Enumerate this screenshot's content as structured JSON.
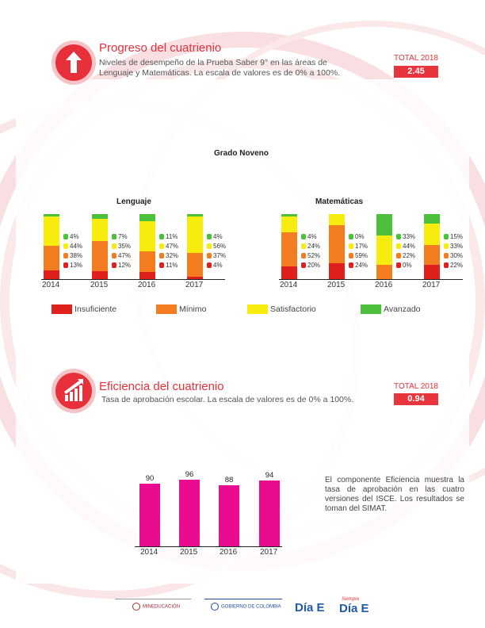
{
  "progress": {
    "title": "Progreso del cuatrienio",
    "description": "Niveles de desempeño de la Prueba Saber 9° en las áreas de Lenguaje y Matemáticas. La escala de valores es de 0% a 100%.",
    "total_label": "TOTAL 2018",
    "total_value": "2.45"
  },
  "grade_title": "Grado Noveno",
  "colors": {
    "insuficiente": "#e0201d",
    "minimo": "#f47c20",
    "satisfactorio": "#f7ec0e",
    "avanzado": "#4dc03b",
    "eficiencia": "#ea0c8e"
  },
  "chart_data": [
    {
      "type": "bar",
      "stacked": true,
      "title": "Lenguaje",
      "categories": [
        "2014",
        "2015",
        "2016",
        "2017"
      ],
      "series": [
        {
          "name": "Insuficiente",
          "values": [
            13,
            12,
            11,
            4
          ]
        },
        {
          "name": "Mínimo",
          "values": [
            38,
            47,
            32,
            37
          ]
        },
        {
          "name": "Satisfactorio",
          "values": [
            44,
            35,
            47,
            56
          ]
        },
        {
          "name": "Avanzado",
          "values": [
            4,
            7,
            11,
            4
          ]
        }
      ],
      "labels": [
        [
          "4%",
          "44%",
          "38%",
          "13%"
        ],
        [
          "7%",
          "35%",
          "47%",
          "12%"
        ],
        [
          "11%",
          "47%",
          "32%",
          "11%"
        ],
        [
          "4%",
          "56%",
          "37%",
          "4%"
        ]
      ]
    },
    {
      "type": "bar",
      "stacked": true,
      "title": "Matemáticas",
      "categories": [
        "2014",
        "2015",
        "2016",
        "2017"
      ],
      "series": [
        {
          "name": "Insuficiente",
          "values": [
            20,
            24,
            0,
            22
          ]
        },
        {
          "name": "Mínimo",
          "values": [
            52,
            59,
            22,
            30
          ]
        },
        {
          "name": "Satisfactorio",
          "values": [
            24,
            17,
            44,
            33
          ]
        },
        {
          "name": "Avanzado",
          "values": [
            4,
            0,
            33,
            15
          ]
        }
      ],
      "labels": [
        [
          "4%",
          "24%",
          "52%",
          "20%"
        ],
        [
          "0%",
          "17%",
          "59%",
          "24%"
        ],
        [
          "33%",
          "44%",
          "22%",
          "0%"
        ],
        [
          "15%",
          "33%",
          "30%",
          "22%"
        ]
      ]
    },
    {
      "type": "bar",
      "title": "",
      "categories": [
        "2014",
        "2015",
        "2016",
        "2017"
      ],
      "values": [
        90,
        96,
        88,
        94
      ],
      "ylim": [
        0,
        100
      ]
    }
  ],
  "legend": [
    "Insuficiente",
    "Mínimo",
    "Satisfactorio",
    "Avanzado"
  ],
  "efficiency": {
    "title": "Eficiencia del cuatrienio",
    "description": "Tasa de aprobación escolar. La escala de valores es de 0% a 100%.",
    "total_label": "TOTAL 2018",
    "total_value": "0.94",
    "note": "El componente Eficiencia muestra la tasa de aprobación en las cuatro versiones del ISCE. Los resultados se toman del SIMAT."
  },
  "footer": {
    "mineducacion": "MINEDUCACIÓN",
    "gobierno": "GOBIERNO DE COLOMBIA",
    "dia_e": "Día E",
    "siempre": "Siempre",
    "siempre_dia_e": "Día E"
  }
}
